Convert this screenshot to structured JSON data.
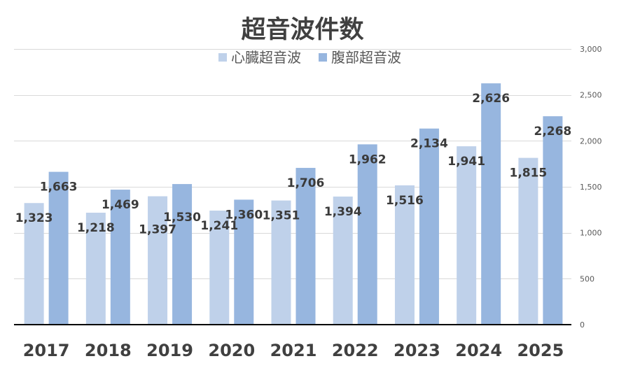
{
  "chart_data": {
    "type": "bar",
    "title": "超音波件数",
    "categories": [
      "2017",
      "2018",
      "2019",
      "2020",
      "2021",
      "2022",
      "2023",
      "2024",
      "2025"
    ],
    "series": [
      {
        "name": "心臓超音波",
        "color": "#bfd1ea",
        "values": [
          1323,
          1218,
          1397,
          1241,
          1351,
          1394,
          1516,
          1941,
          1815
        ],
        "data_labels": [
          "1,323",
          "1,218",
          "1,397",
          "1,241",
          "1,351",
          "1,394",
          "1,516",
          "1,941",
          "1,815"
        ]
      },
      {
        "name": "腹部超音波",
        "color": "#97b6df",
        "values": [
          1663,
          1469,
          1530,
          1360,
          1706,
          1962,
          2134,
          2626,
          2268
        ],
        "data_labels": [
          "1,663",
          "1,469",
          "1,530",
          "1,360",
          "1,706",
          "1,962",
          "2,134",
          "2,626",
          "2,268"
        ]
      }
    ],
    "ylim": [
      0,
      3000
    ],
    "ytick_values": [
      0,
      500,
      1000,
      1500,
      2000,
      2500,
      3000
    ],
    "ytick_labels": [
      "0",
      "500",
      "1,000",
      "1,500",
      "2,000",
      "2,500",
      "3,000"
    ],
    "grid": true,
    "legend_position": "top",
    "y_axis_position": "right",
    "gridline_color": "#d9d9d9",
    "axis_line_color": "#000000"
  }
}
